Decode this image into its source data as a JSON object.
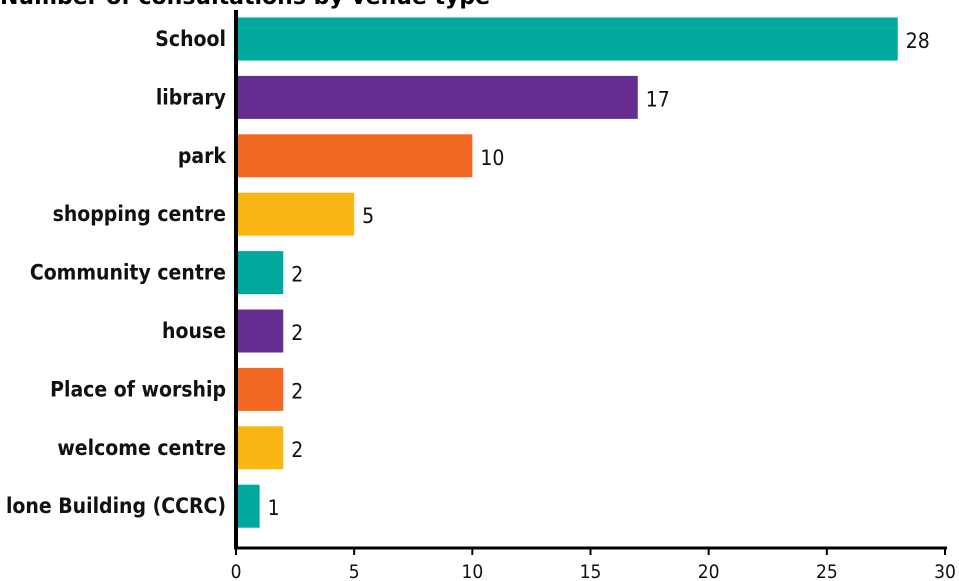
{
  "chart_data": {
    "type": "bar",
    "orientation": "horizontal",
    "title": "Number of consultations by venue type",
    "categories": [
      "School",
      "library",
      "park",
      "shopping centre",
      "Community centre",
      "house",
      "Place of worship",
      "welcome centre",
      "lone Building (CCRC)"
    ],
    "values": [
      28,
      17,
      10,
      5,
      2,
      2,
      2,
      2,
      1
    ],
    "colors": [
      "#00a89d",
      "#662d91",
      "#f26722",
      "#fbb615",
      "#00a89d",
      "#662d91",
      "#f26722",
      "#fbb615",
      "#00a89d"
    ],
    "xlim": [
      0,
      30
    ],
    "xticks": [
      0,
      5,
      10,
      15,
      20,
      25,
      30
    ],
    "grid": false,
    "legend": "none"
  }
}
